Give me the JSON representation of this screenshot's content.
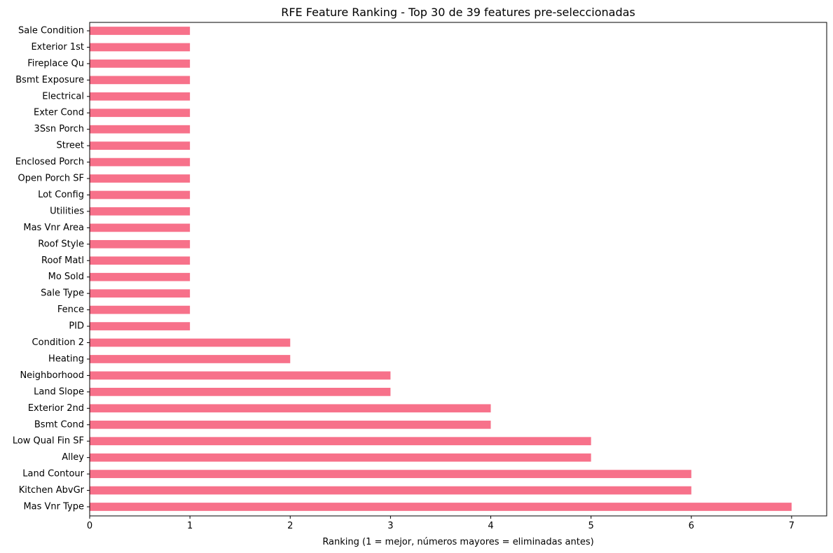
{
  "chart_data": {
    "type": "bar",
    "orientation": "horizontal",
    "title": "RFE Feature Ranking - Top 30 de 39 features pre-seleccionadas",
    "xlabel": "Ranking (1 = mejor, números mayores = eliminadas antes)",
    "ylabel": "",
    "xlim": [
      0,
      7.35
    ],
    "xticks": [
      0,
      1,
      2,
      3,
      4,
      5,
      6,
      7
    ],
    "grid": false,
    "bar_color": "#f7718a",
    "categories": [
      "Sale Condition",
      "Exterior 1st",
      "Fireplace Qu",
      "Bsmt Exposure",
      "Electrical",
      "Exter Cond",
      "3Ssn Porch",
      "Street",
      "Enclosed Porch",
      "Open Porch SF",
      "Lot Config",
      "Utilities",
      "Mas Vnr Area",
      "Roof Style",
      "Roof Matl",
      "Mo Sold",
      "Sale Type",
      "Fence",
      "PID",
      "Condition 2",
      "Heating",
      "Neighborhood",
      "Land Slope",
      "Exterior 2nd",
      "Bsmt Cond",
      "Low Qual Fin SF",
      "Alley",
      "Land Contour",
      "Kitchen AbvGr",
      "Mas Vnr Type"
    ],
    "values": [
      1,
      1,
      1,
      1,
      1,
      1,
      1,
      1,
      1,
      1,
      1,
      1,
      1,
      1,
      1,
      1,
      1,
      1,
      1,
      2,
      2,
      3,
      3,
      4,
      4,
      5,
      5,
      6,
      6,
      7
    ]
  }
}
